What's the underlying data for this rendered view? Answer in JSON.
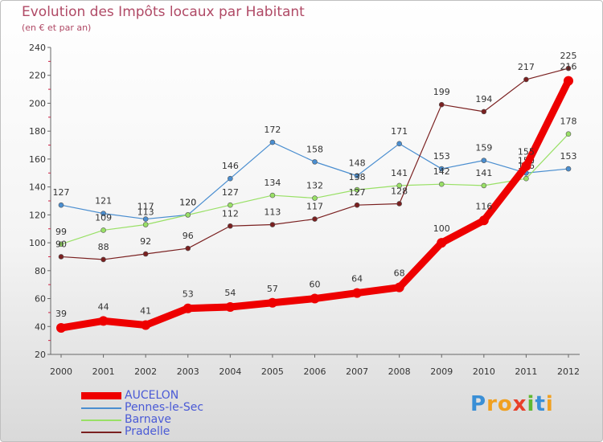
{
  "title": "Evolution des Impôts locaux par Habitant",
  "subtitle": "(en € et par an)",
  "brand": {
    "letters": [
      {
        "ch": "P",
        "color": "#3a8fd6"
      },
      {
        "ch": "r",
        "color": "#f0a020"
      },
      {
        "ch": "o",
        "color": "#f0a020"
      },
      {
        "ch": "x",
        "color": "#e8402a"
      },
      {
        "ch": "i",
        "color": "#5fb832"
      },
      {
        "ch": "t",
        "color": "#3a8fd6"
      },
      {
        "ch": "i",
        "color": "#f0a020"
      }
    ]
  },
  "chart_data": {
    "type": "line",
    "title": "Evolution des Impôts locaux par Habitant",
    "subtitle": "(en € et par an)",
    "xlabel": "",
    "ylabel": "",
    "x": [
      "2000",
      "2001",
      "2002",
      "2003",
      "2004",
      "2005",
      "2006",
      "2007",
      "2008",
      "2009",
      "2010",
      "2011",
      "2012"
    ],
    "ylim": [
      20,
      240
    ],
    "yticks": [
      20,
      40,
      60,
      80,
      100,
      120,
      140,
      160,
      180,
      200,
      220,
      240
    ],
    "grid": false,
    "legend": "bottom-left",
    "series": [
      {
        "name": "AUCELON",
        "color": "#ee0000",
        "emphasis": true,
        "values": [
          39,
          44,
          41,
          53,
          54,
          57,
          60,
          64,
          68,
          100,
          116,
          155,
          216
        ]
      },
      {
        "name": "Pennes-le-Sec",
        "color": "#4a8ed0",
        "emphasis": false,
        "values": [
          127,
          121,
          117,
          120,
          146,
          172,
          158,
          148,
          171,
          153,
          159,
          150,
          153
        ]
      },
      {
        "name": "Barnave",
        "color": "#99e066",
        "emphasis": false,
        "values": [
          99,
          109,
          113,
          120,
          127,
          134,
          132,
          138,
          141,
          142,
          141,
          146,
          178
        ]
      },
      {
        "name": "Pradelle",
        "color": "#7a2020",
        "emphasis": false,
        "values": [
          90,
          88,
          92,
          96,
          112,
          113,
          117,
          127,
          128,
          199,
          194,
          217,
          225
        ]
      }
    ]
  }
}
